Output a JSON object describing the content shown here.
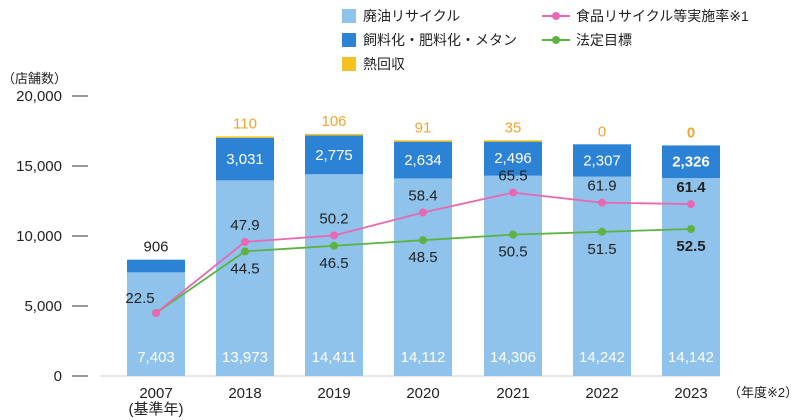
{
  "chart_data": {
    "type": "bar",
    "stacked": true,
    "y_unit_label": "（店舗数）",
    "x_unit_label": "（年度※2）",
    "categories": [
      "2007",
      "2018",
      "2019",
      "2020",
      "2021",
      "2022",
      "2023"
    ],
    "category_sublabels": [
      "(基準年)",
      "",
      "",
      "",
      "",
      "",
      ""
    ],
    "ylim": [
      0,
      20000
    ],
    "yticks": [
      0,
      5000,
      10000,
      15000,
      20000
    ],
    "ytick_labels": [
      "0",
      "5,000",
      "10,000",
      "15,000",
      "20,000"
    ],
    "series": [
      {
        "name": "廃油リサイクル",
        "color": "#8FC3EC",
        "values": [
          7403,
          13973,
          14411,
          14112,
          14306,
          14242,
          14142
        ],
        "labels": [
          "7,403",
          "13,973",
          "14,411",
          "14,112",
          "14,306",
          "14,242",
          "14,142"
        ]
      },
      {
        "name": "飼料化・肥料化・メタン",
        "color": "#2C83D6",
        "values": [
          906,
          3031,
          2775,
          2634,
          2496,
          2307,
          2326
        ],
        "labels": [
          "906",
          "3,031",
          "2,775",
          "2,634",
          "2,496",
          "2,307",
          "2,326"
        ]
      },
      {
        "name": "熱回収",
        "color": "#F4C21F",
        "values": [
          0,
          110,
          106,
          91,
          35,
          0,
          0
        ],
        "labels": [
          "",
          "110",
          "106",
          "91",
          "35",
          "0",
          "0"
        ]
      }
    ],
    "lines": [
      {
        "name": "食品リサイクル等実施率※1",
        "color": "#E868B4",
        "values": [
          22.5,
          47.9,
          50.2,
          58.4,
          65.5,
          61.9,
          61.4
        ],
        "labels": [
          "22.5",
          "47.9",
          "50.2",
          "58.4",
          "65.5",
          "61.9",
          "61.4"
        ]
      },
      {
        "name": "法定目標",
        "color": "#5CB342",
        "values": [
          22.5,
          44.5,
          46.5,
          48.5,
          50.5,
          51.5,
          52.5
        ],
        "labels": [
          "",
          "44.5",
          "46.5",
          "48.5",
          "50.5",
          "51.5",
          "52.5"
        ]
      }
    ],
    "legend_position": "top-center",
    "grid": false
  }
}
